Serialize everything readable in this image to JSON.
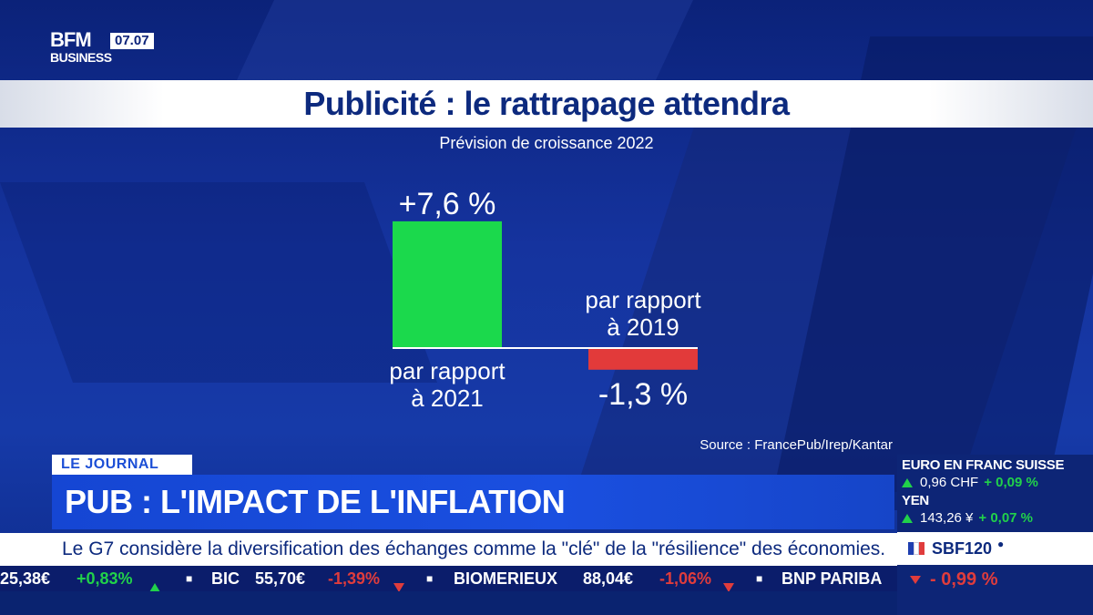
{
  "logo": {
    "brand": "BFM",
    "sub": "BUSINESS",
    "time": "07.07"
  },
  "title": "Publicité : le rattrapage attendra",
  "subtitle": "Prévision de croissance 2022",
  "chart_data": {
    "type": "bar",
    "title": "Publicité : le rattrapage attendra",
    "subtitle": "Prévision de croissance 2022",
    "categories": [
      "par rapport à 2021",
      "par rapport à 2019"
    ],
    "category_lines": [
      [
        "par rapport",
        "à 2021"
      ],
      [
        "par rapport",
        "à 2019"
      ]
    ],
    "values": [
      7.6,
      -1.3
    ],
    "value_labels": [
      "+7,6 %",
      "-1,3 %"
    ],
    "colors": [
      "#1bd94c",
      "#e23a3a"
    ],
    "baseline": 0,
    "ylim": [
      -1.3,
      7.6
    ],
    "grid": false,
    "source": "Source : FrancePub/Irep/Kantar"
  },
  "source": "Source : FrancePub/Irep/Kantar",
  "lower_third": {
    "tag": "LE JOURNAL",
    "headline": "PUB : L'IMPACT DE L'INFLATION",
    "news": "Le G7 considère la diversification des échanges comme la \"clé\" de la \"résilience\" des économies."
  },
  "ticker": {
    "first": {
      "price": "25,38€",
      "change": "+0,83%"
    },
    "items": [
      {
        "name": "BIC",
        "price": "55,70€",
        "change": "-1,39%"
      },
      {
        "name": "BIOMERIEUX",
        "price": "88,04€",
        "change": "-1,06%"
      },
      {
        "name": "BNP PARIBA"
      }
    ]
  },
  "market": {
    "fx1": {
      "title": "EURO EN FRANC SUISSE",
      "value": "0,96 CHF",
      "change": "+ 0,09 %"
    },
    "fx2": {
      "title": "YEN",
      "value": "143,26 ¥",
      "change": "+ 0,07 %"
    },
    "index": {
      "name": "SBF120",
      "change": "- 0,99 %"
    }
  },
  "colors": {
    "brand_blue": "#0d2a7e",
    "up": "#21d14a",
    "down": "#e03c3c",
    "france_blue": "#1f3fb0",
    "france_red": "#e03c3c"
  }
}
